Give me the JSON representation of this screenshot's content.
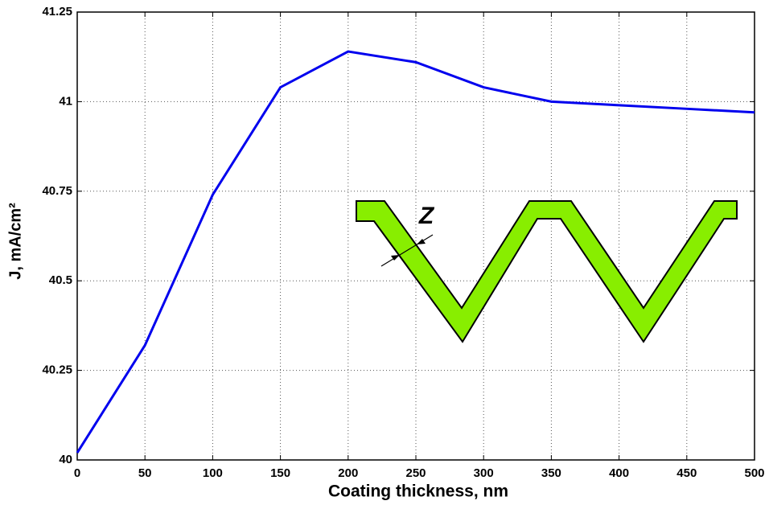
{
  "chart_data": {
    "type": "line",
    "x_label": "Coating thickness, nm",
    "y_label": "J, mA/cm²",
    "x": [
      0,
      50,
      100,
      150,
      200,
      250,
      300,
      350,
      400,
      450,
      500
    ],
    "series": [
      {
        "color": "#0000ee",
        "values": [
          40.02,
          40.32,
          40.74,
          41.04,
          41.14,
          41.11,
          41.04,
          41.0,
          40.99,
          40.98,
          40.97
        ]
      }
    ],
    "xlim": [
      0,
      500
    ],
    "xticks": [
      0,
      50,
      100,
      150,
      200,
      250,
      300,
      350,
      400,
      450,
      500
    ],
    "ylim": [
      40,
      41.25
    ],
    "yticks": [
      40,
      40.25,
      40.5,
      40.75,
      41,
      41.25
    ],
    "grid": true,
    "annotations": [
      "Z"
    ]
  }
}
